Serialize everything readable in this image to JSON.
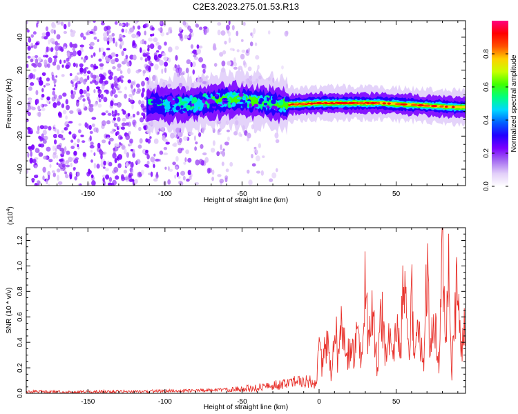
{
  "title": "C2E3.2023.275.01.53.R13",
  "colors": {
    "line": "#e8302a",
    "axis": "#000000",
    "background": "#ffffff",
    "colormap": [
      "#ffffff",
      "#e2cff9",
      "#a66df1",
      "#7a00ff",
      "#2200ff",
      "#0060ff",
      "#00d8ff",
      "#00ff80",
      "#40ff00",
      "#c8ff00",
      "#ffd000",
      "#ff5000",
      "#ff0000",
      "#ff0080"
    ]
  },
  "chart_data": [
    {
      "type": "heatmap",
      "xlabel": "Height of straight line (km)",
      "ylabel": "Frequency (Hz)",
      "xlim": [
        -190,
        95
      ],
      "ylim": [
        -50,
        50
      ],
      "xticks": [
        -150,
        -100,
        -50,
        0,
        50
      ],
      "xtick_labels": [
        "-150",
        "-100",
        "-50",
        "0",
        "50"
      ],
      "yticks": [
        -40,
        -20,
        0,
        20,
        40
      ],
      "ytick_labels": [
        "-40",
        "-20",
        "0",
        "20",
        "40"
      ],
      "ridge": {
        "x": [
          -110,
          -100,
          -90,
          -80,
          -70,
          -60,
          -50,
          -40,
          -30,
          -20,
          -10,
          0,
          10,
          20,
          30,
          40,
          50,
          60,
          70,
          80,
          90
        ],
        "y": [
          -1,
          -1,
          -1,
          -0.5,
          1,
          2,
          2,
          1,
          0,
          -1,
          -0.5,
          0,
          0,
          0,
          0,
          0,
          -0.5,
          -1,
          -1.5,
          -2,
          -2.5
        ]
      },
      "colorbar": {
        "label": "Normalized spectral amplitude",
        "ticks": [
          0.0,
          0.2,
          0.4,
          0.6,
          0.8
        ],
        "tick_labels": [
          "0.0",
          "0.2",
          "0.4",
          "0.6",
          "0.8"
        ],
        "range": [
          0,
          1
        ]
      }
    },
    {
      "type": "line",
      "xlabel": "Height of straight line (km)",
      "ylabel": "SNR (10 * v/v)",
      "y_exponent_label": "(x10",
      "y_exponent_power": "4",
      "y_exponent_close": ")",
      "xlim": [
        -190,
        95
      ],
      "ylim": [
        0,
        1.3
      ],
      "xticks": [
        -150,
        -100,
        -50,
        0,
        50
      ],
      "xtick_labels": [
        "-150",
        "-100",
        "-50",
        "0",
        "50"
      ],
      "yticks": [
        0.0,
        0.2,
        0.4,
        0.6,
        0.8,
        1.0,
        1.2
      ],
      "ytick_labels": [
        "0.0",
        "0.2",
        "0.4",
        "0.6",
        "0.8",
        "1.0",
        "1.2"
      ],
      "series": [
        {
          "x": [
            -190,
            -180,
            -170,
            -160,
            -150,
            -140,
            -130,
            -120,
            -110,
            -100,
            -90,
            -80,
            -70,
            -60,
            -50,
            -45,
            -40,
            -35,
            -30,
            -25,
            -20,
            -15,
            -10,
            -5,
            -2,
            0,
            2,
            5,
            8,
            10,
            12,
            15,
            18,
            20,
            23,
            25,
            28,
            30,
            32,
            35,
            38,
            40,
            43,
            45,
            48,
            50,
            53,
            55,
            58,
            60,
            62,
            65,
            68,
            70,
            72,
            75,
            78,
            80,
            82,
            84,
            86,
            88,
            90,
            92,
            95
          ],
          "y": [
            0.01,
            0.012,
            0.011,
            0.013,
            0.012,
            0.014,
            0.013,
            0.015,
            0.016,
            0.018,
            0.02,
            0.022,
            0.025,
            0.03,
            0.035,
            0.04,
            0.045,
            0.05,
            0.06,
            0.07,
            0.08,
            0.09,
            0.1,
            0.09,
            0.08,
            0.32,
            0.2,
            0.45,
            0.15,
            0.62,
            0.3,
            0.55,
            0.22,
            0.4,
            0.3,
            0.52,
            0.2,
            0.88,
            0.35,
            0.65,
            0.18,
            0.75,
            0.35,
            0.52,
            0.2,
            0.62,
            0.4,
            0.95,
            0.25,
            0.78,
            0.35,
            0.55,
            0.12,
            1.02,
            0.3,
            0.6,
            0.15,
            1.32,
            0.25,
            0.95,
            0.1,
            0.6,
            0.85,
            0.4,
            0.55
          ]
        }
      ]
    }
  ]
}
